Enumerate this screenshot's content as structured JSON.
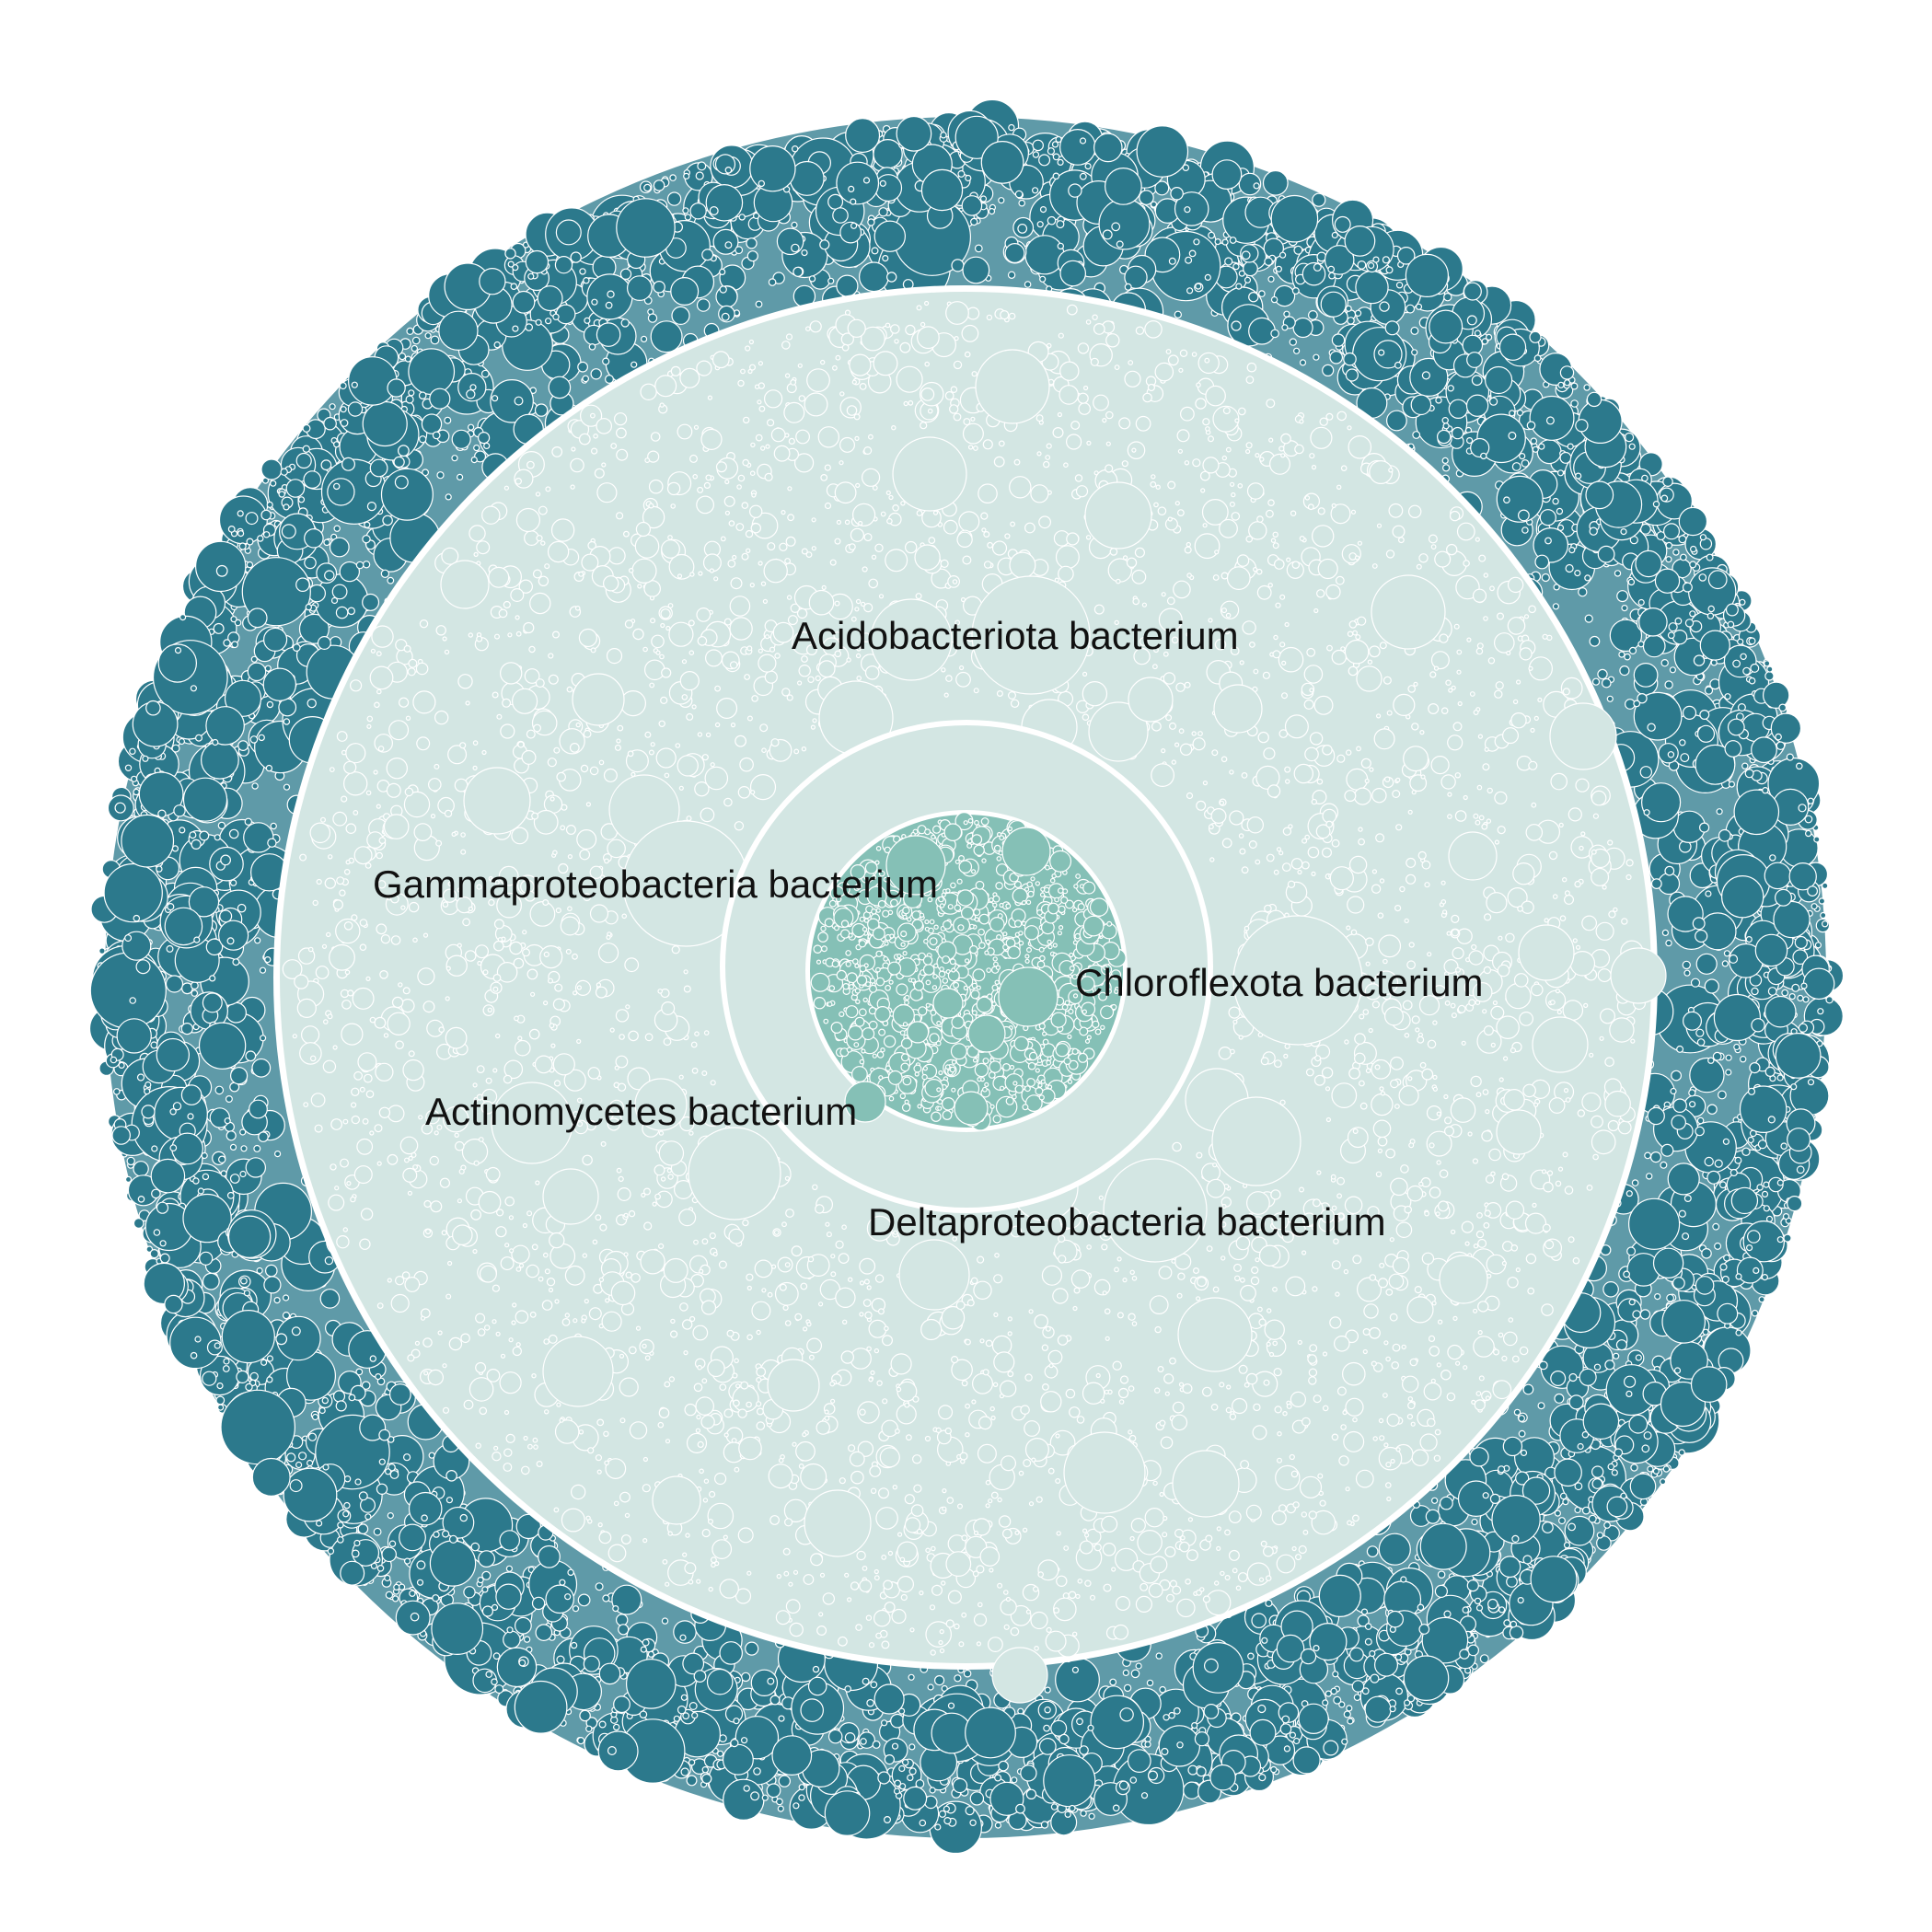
{
  "figure": {
    "colors": {
      "outer_ring": "#2c798c",
      "middle_field": "#d3e6e3",
      "inner_core": "#85c0b6",
      "background": "#ffffff"
    },
    "rings": [
      {
        "name": "outer-ring",
        "color_key": "outer_ring"
      },
      {
        "name": "middle-field",
        "color_key": "middle_field"
      },
      {
        "name": "inner-core",
        "color_key": "inner_core"
      }
    ],
    "labels": [
      "Acidobacteriota bacterium",
      "Gammaproteobacteria bacterium",
      "Chloroflexota bacterium",
      "Actinomycetes bacterium",
      "Deltaproteobacteria bacterium"
    ]
  }
}
